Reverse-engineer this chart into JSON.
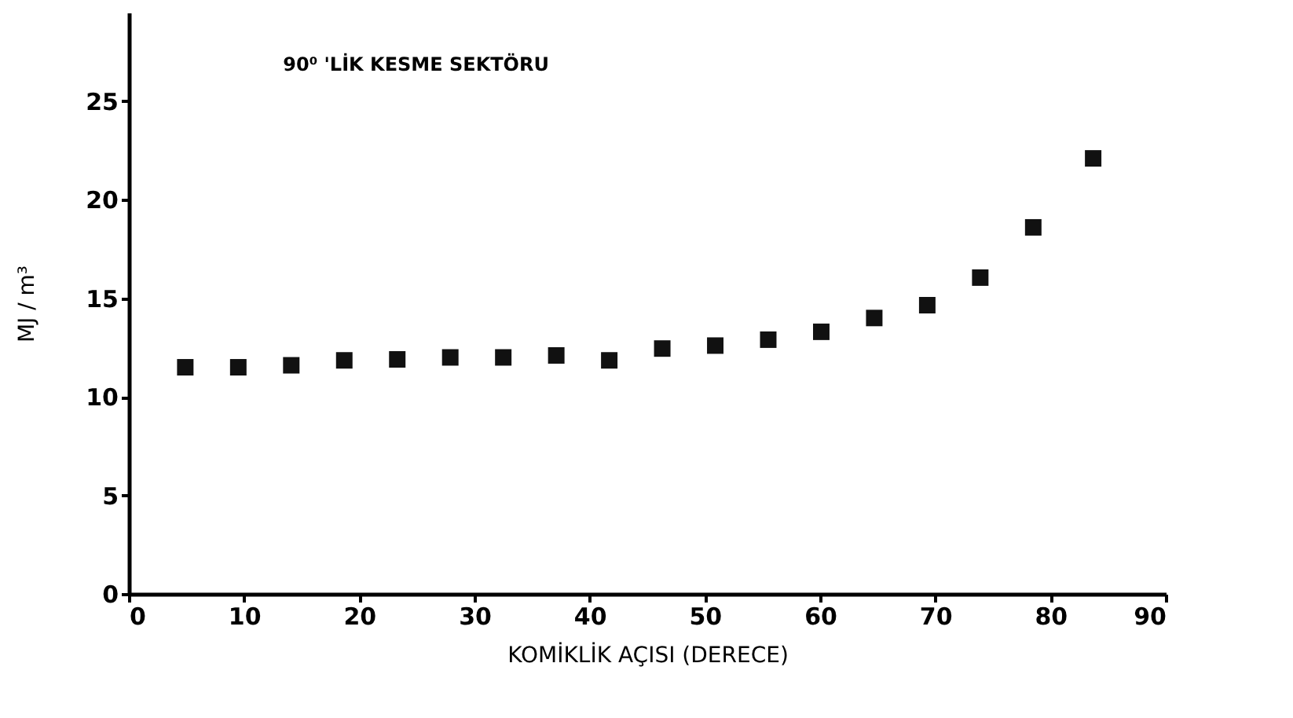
{
  "chart_data": {
    "type": "scatter",
    "title": "90⁰ 'LİK KESME SEKTÖRU",
    "xlabel": "KOMİKLİK AÇISI  (DERECE)",
    "ylabel": "MJ / m³",
    "x": [
      4.9,
      9.5,
      14.1,
      18.7,
      23.3,
      27.9,
      32.5,
      37.1,
      41.7,
      46.3,
      50.9,
      55.5,
      60.1,
      64.7,
      69.3,
      73.9,
      78.5,
      83.7
    ],
    "series": [
      {
        "color": "#111111",
        "values": [
          11.5,
          11.5,
          11.6,
          11.85,
          11.9,
          12.0,
          12.0,
          12.1,
          11.85,
          12.45,
          12.6,
          12.9,
          13.3,
          14.0,
          14.65,
          16.05,
          18.6,
          22.1
        ]
      }
    ],
    "xlim": [
      0,
      90
    ],
    "xticks": [
      0,
      10,
      20,
      30,
      40,
      50,
      60,
      70,
      80,
      90
    ],
    "ylim": [
      0,
      29.5
    ],
    "yticks": [
      0,
      5,
      10,
      15,
      20,
      25
    ],
    "grid": false,
    "legend": false,
    "marker": "square"
  }
}
